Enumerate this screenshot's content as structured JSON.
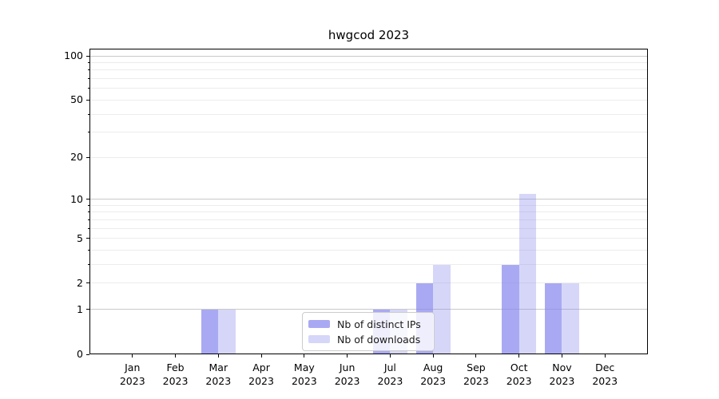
{
  "chart_data": {
    "type": "bar",
    "title": "hwgcod 2023",
    "xlabel": "",
    "ylabel": "",
    "scale": "log1p",
    "grid": true,
    "categories": [
      "Jan 2023",
      "Feb 2023",
      "Mar 2023",
      "Apr 2023",
      "May 2023",
      "Jun 2023",
      "Jul 2023",
      "Aug 2023",
      "Sep 2023",
      "Oct 2023",
      "Nov 2023",
      "Dec 2023"
    ],
    "series": [
      {
        "name": "Nb of distinct IPs",
        "color": "#8888ee",
        "alpha": 0.72,
        "rendered_color": "#a9a9f0",
        "values": [
          0,
          0,
          1,
          0,
          0,
          0,
          1,
          2,
          0,
          3,
          2,
          0
        ]
      },
      {
        "name": "Nb of downloads",
        "color": "#8888ee",
        "alpha": 0.34,
        "rendered_color": "#d8d8f8",
        "values": [
          0,
          0,
          1,
          0,
          0,
          0,
          1,
          3,
          0,
          11,
          2,
          0
        ]
      }
    ],
    "yticks": [
      0,
      1,
      2,
      5,
      10,
      20,
      50,
      100
    ],
    "ylim": [
      0,
      110
    ],
    "legend_position": "lower center"
  }
}
